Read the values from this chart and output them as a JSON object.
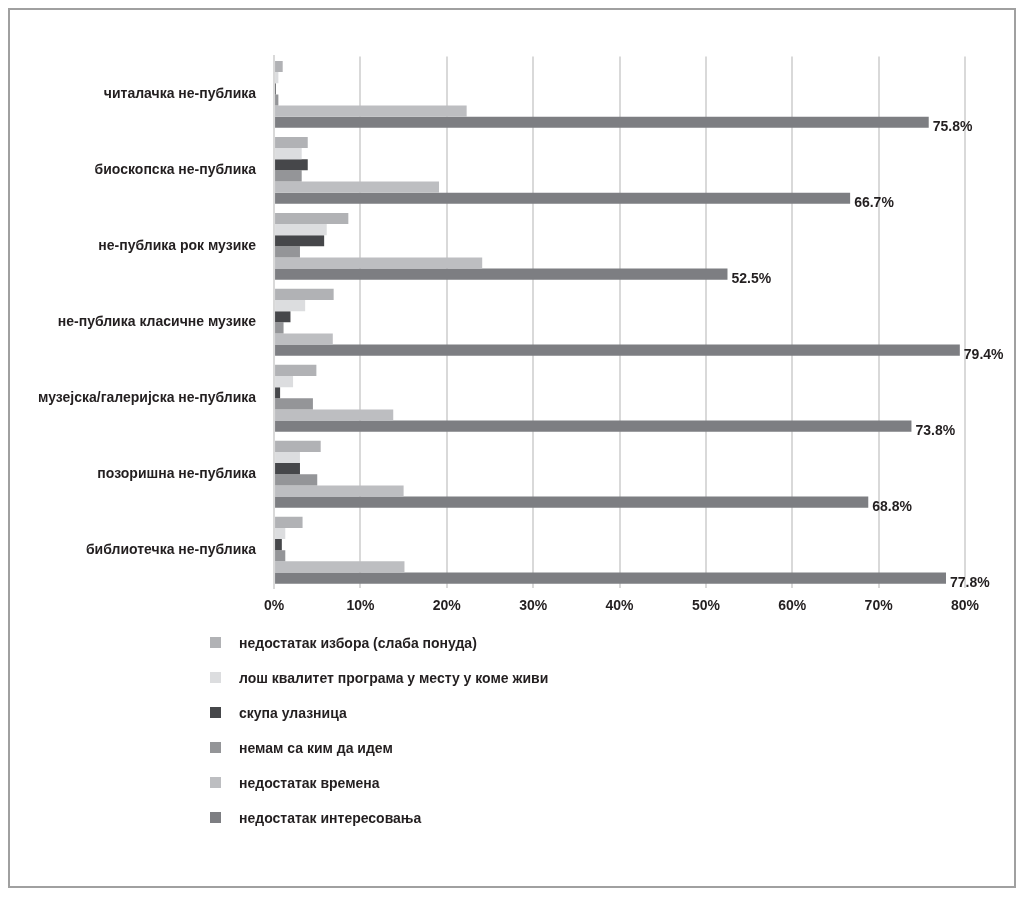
{
  "chart_data": {
    "type": "bar",
    "orientation": "horizontal",
    "categories": [
      "читалачка не-публика",
      "биоскопска не-публика",
      "не-публика рок музике",
      "не-публика класичне музике",
      "музејска/галеријска не-публика",
      "позоришна не-публика",
      "библиотечка не-публика"
    ],
    "series": [
      {
        "name": "недостатак избора (слаба понуда)",
        "color": "#b1b2b5",
        "values": [
          1.0,
          3.9,
          8.6,
          6.9,
          4.9,
          5.4,
          3.3
        ]
      },
      {
        "name": "лош квалитет програма у месту у коме живи",
        "color": "#dcdddf",
        "values": [
          0.5,
          3.2,
          6.1,
          3.6,
          2.2,
          3.0,
          1.3
        ]
      },
      {
        "name": "скупа улазница",
        "color": "#46474a",
        "values": [
          0.2,
          3.9,
          5.8,
          1.9,
          0.7,
          3.0,
          0.9
        ]
      },
      {
        "name": "немам са ким да идем",
        "color": "#949598",
        "values": [
          0.5,
          3.2,
          3.0,
          1.1,
          4.5,
          5.0,
          1.3
        ]
      },
      {
        "name": "недостатак времена",
        "color": "#bdbec1",
        "values": [
          22.3,
          19.1,
          24.1,
          6.8,
          13.8,
          15.0,
          15.1
        ]
      },
      {
        "name": "недостатак интересовања",
        "color": "#7d7e82",
        "values": [
          75.8,
          66.7,
          52.5,
          79.4,
          73.8,
          68.8,
          77.8
        ],
        "value_labels": [
          "75.8%",
          "66.7%",
          "52.5%",
          "79.4%",
          "73.8%",
          "68.8%",
          "77.8%"
        ]
      }
    ],
    "xlim": [
      0,
      80
    ],
    "xticks": [
      {
        "value": 0,
        "label": "0%"
      },
      {
        "value": 10,
        "label": "10%"
      },
      {
        "value": 20,
        "label": "20%"
      },
      {
        "value": 30,
        "label": "30%"
      },
      {
        "value": 40,
        "label": "40%"
      },
      {
        "value": 50,
        "label": "50%"
      },
      {
        "value": 60,
        "label": "60%"
      },
      {
        "value": 70,
        "label": "70%"
      },
      {
        "value": 80,
        "label": "80%"
      }
    ],
    "grid": "x",
    "legend": "bottom"
  }
}
